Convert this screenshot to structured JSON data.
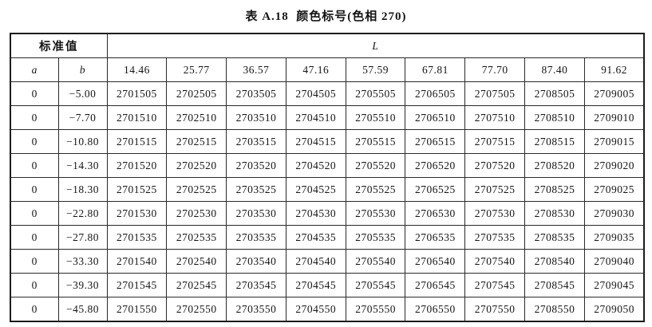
{
  "title": "表 A.18  颜色标号(色相 270)",
  "table": {
    "header": {
      "standard_value_label": "标准值",
      "l_label": "L",
      "a_label": "a",
      "b_label": "b",
      "l_values": [
        "14.46",
        "25.77",
        "36.57",
        "47.16",
        "57.59",
        "67.81",
        "77.70",
        "87.40",
        "91.62"
      ]
    },
    "rows": [
      {
        "a": "0",
        "b": "−5.00",
        "codes": [
          "2701505",
          "2702505",
          "2703505",
          "2704505",
          "2705505",
          "2706505",
          "2707505",
          "2708505",
          "2709005"
        ]
      },
      {
        "a": "0",
        "b": "−7.70",
        "codes": [
          "2701510",
          "2702510",
          "2703510",
          "2704510",
          "2705510",
          "2706510",
          "2707510",
          "2708510",
          "2709010"
        ]
      },
      {
        "a": "0",
        "b": "−10.80",
        "codes": [
          "2701515",
          "2702515",
          "2703515",
          "2704515",
          "2705515",
          "2706515",
          "2707515",
          "2708515",
          "2709015"
        ]
      },
      {
        "a": "0",
        "b": "−14.30",
        "codes": [
          "2701520",
          "2702520",
          "2703520",
          "2704520",
          "2705520",
          "2706520",
          "2707520",
          "2708520",
          "2709020"
        ]
      },
      {
        "a": "0",
        "b": "−18.30",
        "codes": [
          "2701525",
          "2702525",
          "2703525",
          "2704525",
          "2705525",
          "2706525",
          "2707525",
          "2708525",
          "2709025"
        ]
      },
      {
        "a": "0",
        "b": "−22.80",
        "codes": [
          "2701530",
          "2702530",
          "2703530",
          "2704530",
          "2705530",
          "2706530",
          "2707530",
          "2708530",
          "2709030"
        ]
      },
      {
        "a": "0",
        "b": "−27.80",
        "codes": [
          "2701535",
          "2702535",
          "2703535",
          "2704535",
          "2705535",
          "2706535",
          "2707535",
          "2708535",
          "2709035"
        ]
      },
      {
        "a": "0",
        "b": "−33.30",
        "codes": [
          "2701540",
          "2702540",
          "2703540",
          "2704540",
          "2705540",
          "2706540",
          "2707540",
          "2708540",
          "2709040"
        ]
      },
      {
        "a": "0",
        "b": "−39.30",
        "codes": [
          "2701545",
          "2702545",
          "2703545",
          "2704545",
          "2705545",
          "2706545",
          "2707545",
          "2708545",
          "2709045"
        ]
      },
      {
        "a": "0",
        "b": "−45.80",
        "codes": [
          "2701550",
          "2702550",
          "2703550",
          "2704550",
          "2705550",
          "2706550",
          "2707550",
          "2708550",
          "2709050"
        ]
      }
    ]
  }
}
